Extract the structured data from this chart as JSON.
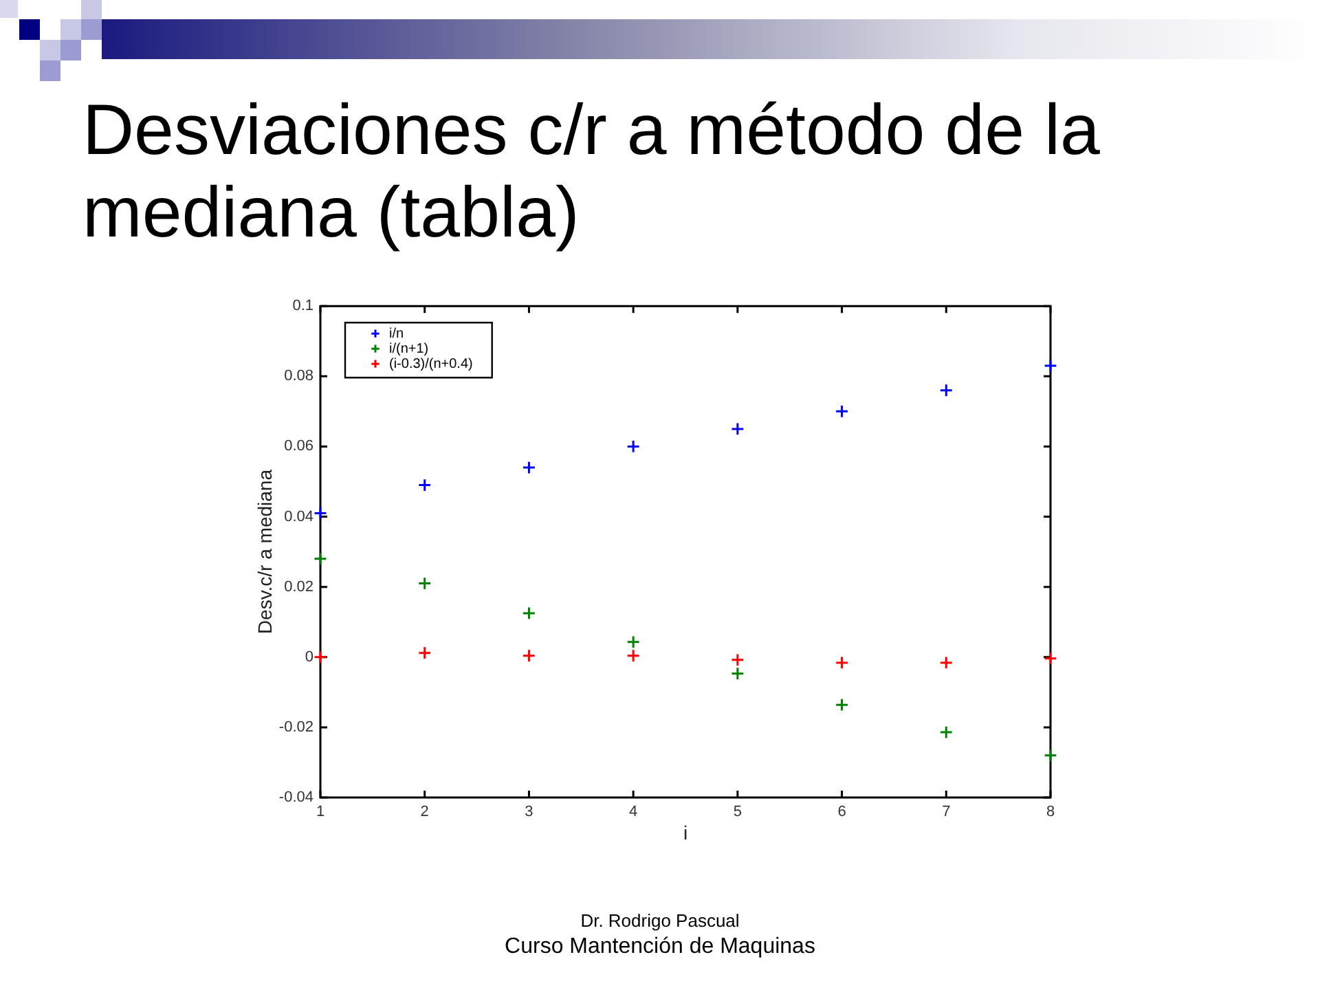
{
  "chart_data": {
    "type": "scatter",
    "title": "Desviaciones c/r a método de la mediana (tabla)",
    "xlabel": "i",
    "ylabel": "Desv.c/r a mediana",
    "x": [
      1,
      2,
      3,
      4,
      5,
      6,
      7,
      8
    ],
    "series": [
      {
        "name": "i/n",
        "color": "#0000ff",
        "values": [
          0.041,
          0.049,
          0.054,
          0.06,
          0.065,
          0.07,
          0.076,
          0.083
        ]
      },
      {
        "name": "i/(n+1)",
        "color": "#008000",
        "values": [
          0.028,
          0.021,
          0.0125,
          0.0043,
          -0.0047,
          -0.0136,
          -0.0214,
          -0.028
        ]
      },
      {
        "name": "(i-0.3)/(n+0.4)",
        "color": "#ff0000",
        "values": [
          0,
          0.0012,
          0.0004,
          0.0004,
          -0.0008,
          -0.0016,
          -0.0016,
          -0.0004
        ]
      }
    ],
    "xlim": [
      1,
      8
    ],
    "xticks": [
      1,
      2,
      3,
      4,
      5,
      6,
      7,
      8
    ],
    "ylim": [
      -0.04,
      0.1
    ],
    "yticks": [
      -0.04,
      -0.02,
      0,
      0.02,
      0.04,
      0.06,
      0.08,
      0.1
    ],
    "legend": "top left",
    "marker": "cross",
    "annotations": [
      "Dr. Rodrigo Pascual",
      "Curso Mantención de Maquinas"
    ]
  }
}
